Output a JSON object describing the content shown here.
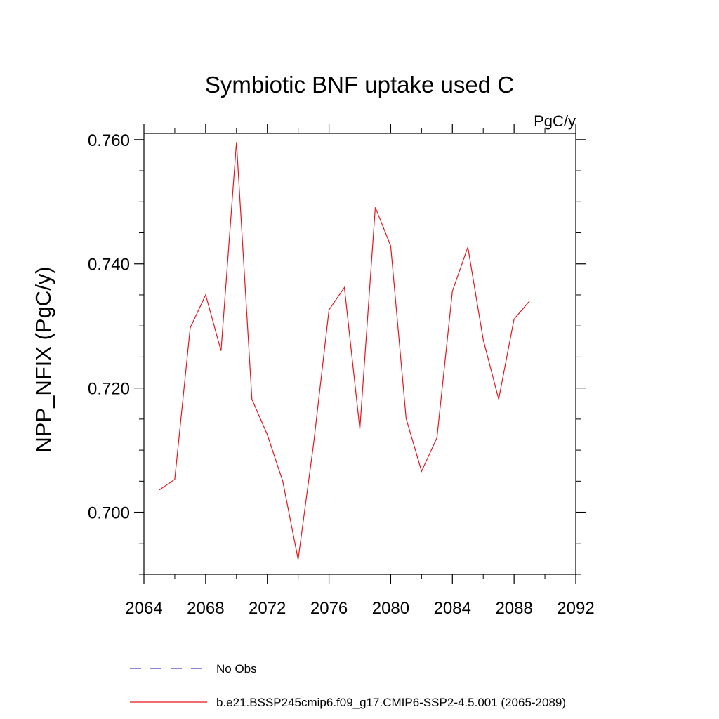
{
  "chart_data": {
    "type": "line",
    "title": "Symbiotic BNF uptake used C",
    "units": "PgC/y",
    "xlabel": "",
    "ylabel": "NPP_NFIX  (PgC/y)",
    "xlim": [
      2064,
      2092
    ],
    "ylim": [
      0.69,
      0.761
    ],
    "x_ticks": [
      2064,
      2068,
      2072,
      2076,
      2080,
      2084,
      2088,
      2092
    ],
    "x_tick_labels": [
      "2064",
      "2068",
      "2072",
      "2076",
      "2080",
      "2084",
      "2088",
      "2092"
    ],
    "y_ticks": [
      0.7,
      0.72,
      0.74,
      0.76
    ],
    "y_tick_labels": [
      "0.700",
      "0.720",
      "0.740",
      "0.760"
    ],
    "grid": false,
    "legend_position": "bottom",
    "series": [
      {
        "name": "No Obs",
        "color": "#4b3bbd",
        "dash": "dashed",
        "x": [],
        "values": []
      },
      {
        "name": "b.e21.BSSP245cmip6.f09_g17.CMIP6-SSP2-4.5.001 (2065-2089)",
        "color": "#e8141c",
        "dash": "solid",
        "x": [
          2065,
          2066,
          2067,
          2068,
          2069,
          2070,
          2071,
          2072,
          2073,
          2074,
          2075,
          2076,
          2077,
          2078,
          2079,
          2080,
          2081,
          2082,
          2083,
          2084,
          2085,
          2086,
          2087,
          2088,
          2089
        ],
        "values": [
          0.7036,
          0.7053,
          0.7297,
          0.735,
          0.726,
          0.7596,
          0.7182,
          0.7125,
          0.705,
          0.6924,
          0.711,
          0.7326,
          0.7362,
          0.7134,
          0.7491,
          0.7429,
          0.7151,
          0.7066,
          0.712,
          0.7356,
          0.7427,
          0.7278,
          0.7182,
          0.7311,
          0.734
        ]
      }
    ]
  }
}
